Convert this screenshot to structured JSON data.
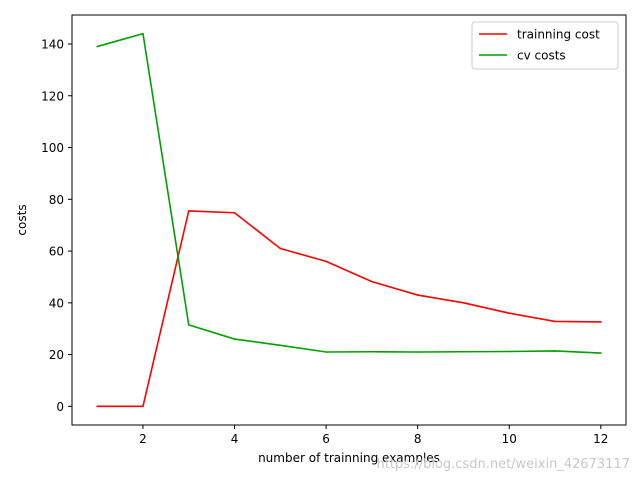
{
  "chart_data": {
    "type": "line",
    "x": [
      1,
      2,
      3,
      4,
      5,
      6,
      7,
      8,
      9,
      10,
      11,
      12
    ],
    "series": [
      {
        "name": "trainning cost",
        "color": "#ff0000",
        "values": [
          0,
          0,
          75.5,
          74.8,
          61,
          56,
          48.2,
          43,
          40,
          36,
          32.8,
          32.6
        ]
      },
      {
        "name": "cv costs",
        "color": "#00a000",
        "values": [
          139,
          144,
          31.5,
          26,
          23.6,
          21,
          21.1,
          21,
          21.1,
          21.2,
          21.4,
          20.6
        ]
      }
    ],
    "xlabel": "number of trainning examples",
    "ylabel": "costs",
    "xlim": [
      0.45,
      12.55
    ],
    "ylim": [
      -7.2,
      151.2
    ],
    "xticks": [
      2,
      4,
      6,
      8,
      10,
      12
    ],
    "yticks": [
      0,
      20,
      40,
      60,
      80,
      100,
      120,
      140
    ],
    "legend_position": "top-right",
    "grid": false
  },
  "watermark": "https://blog.csdn.net/weixin_42673117"
}
